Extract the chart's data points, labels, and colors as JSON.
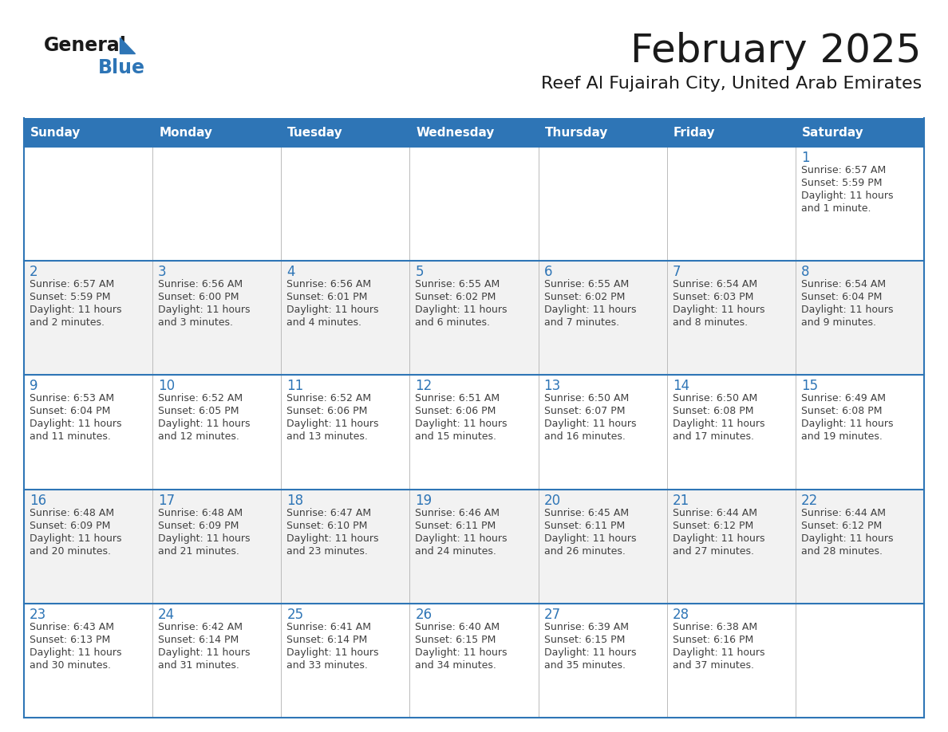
{
  "title": "February 2025",
  "subtitle": "Reef Al Fujairah City, United Arab Emirates",
  "days_of_week": [
    "Sunday",
    "Monday",
    "Tuesday",
    "Wednesday",
    "Thursday",
    "Friday",
    "Saturday"
  ],
  "header_bg": "#2E75B6",
  "header_text": "#FFFFFF",
  "row_bg_even": "#FFFFFF",
  "row_bg_odd": "#F2F2F2",
  "cell_border_color": "#2E75B6",
  "vert_border_color": "#BBBBBB",
  "day_number_color": "#2E75B6",
  "info_text_color": "#404040",
  "calendar_data": [
    {
      "day": 1,
      "col": 6,
      "row": 0,
      "sunrise": "6:57 AM",
      "sunset": "5:59 PM",
      "daylight": "11 hours and 1 minute."
    },
    {
      "day": 2,
      "col": 0,
      "row": 1,
      "sunrise": "6:57 AM",
      "sunset": "5:59 PM",
      "daylight": "11 hours and 2 minutes."
    },
    {
      "day": 3,
      "col": 1,
      "row": 1,
      "sunrise": "6:56 AM",
      "sunset": "6:00 PM",
      "daylight": "11 hours and 3 minutes."
    },
    {
      "day": 4,
      "col": 2,
      "row": 1,
      "sunrise": "6:56 AM",
      "sunset": "6:01 PM",
      "daylight": "11 hours and 4 minutes."
    },
    {
      "day": 5,
      "col": 3,
      "row": 1,
      "sunrise": "6:55 AM",
      "sunset": "6:02 PM",
      "daylight": "11 hours and 6 minutes."
    },
    {
      "day": 6,
      "col": 4,
      "row": 1,
      "sunrise": "6:55 AM",
      "sunset": "6:02 PM",
      "daylight": "11 hours and 7 minutes."
    },
    {
      "day": 7,
      "col": 5,
      "row": 1,
      "sunrise": "6:54 AM",
      "sunset": "6:03 PM",
      "daylight": "11 hours and 8 minutes."
    },
    {
      "day": 8,
      "col": 6,
      "row": 1,
      "sunrise": "6:54 AM",
      "sunset": "6:04 PM",
      "daylight": "11 hours and 9 minutes."
    },
    {
      "day": 9,
      "col": 0,
      "row": 2,
      "sunrise": "6:53 AM",
      "sunset": "6:04 PM",
      "daylight": "11 hours and 11 minutes."
    },
    {
      "day": 10,
      "col": 1,
      "row": 2,
      "sunrise": "6:52 AM",
      "sunset": "6:05 PM",
      "daylight": "11 hours and 12 minutes."
    },
    {
      "day": 11,
      "col": 2,
      "row": 2,
      "sunrise": "6:52 AM",
      "sunset": "6:06 PM",
      "daylight": "11 hours and 13 minutes."
    },
    {
      "day": 12,
      "col": 3,
      "row": 2,
      "sunrise": "6:51 AM",
      "sunset": "6:06 PM",
      "daylight": "11 hours and 15 minutes."
    },
    {
      "day": 13,
      "col": 4,
      "row": 2,
      "sunrise": "6:50 AM",
      "sunset": "6:07 PM",
      "daylight": "11 hours and 16 minutes."
    },
    {
      "day": 14,
      "col": 5,
      "row": 2,
      "sunrise": "6:50 AM",
      "sunset": "6:08 PM",
      "daylight": "11 hours and 17 minutes."
    },
    {
      "day": 15,
      "col": 6,
      "row": 2,
      "sunrise": "6:49 AM",
      "sunset": "6:08 PM",
      "daylight": "11 hours and 19 minutes."
    },
    {
      "day": 16,
      "col": 0,
      "row": 3,
      "sunrise": "6:48 AM",
      "sunset": "6:09 PM",
      "daylight": "11 hours and 20 minutes."
    },
    {
      "day": 17,
      "col": 1,
      "row": 3,
      "sunrise": "6:48 AM",
      "sunset": "6:09 PM",
      "daylight": "11 hours and 21 minutes."
    },
    {
      "day": 18,
      "col": 2,
      "row": 3,
      "sunrise": "6:47 AM",
      "sunset": "6:10 PM",
      "daylight": "11 hours and 23 minutes."
    },
    {
      "day": 19,
      "col": 3,
      "row": 3,
      "sunrise": "6:46 AM",
      "sunset": "6:11 PM",
      "daylight": "11 hours and 24 minutes."
    },
    {
      "day": 20,
      "col": 4,
      "row": 3,
      "sunrise": "6:45 AM",
      "sunset": "6:11 PM",
      "daylight": "11 hours and 26 minutes."
    },
    {
      "day": 21,
      "col": 5,
      "row": 3,
      "sunrise": "6:44 AM",
      "sunset": "6:12 PM",
      "daylight": "11 hours and 27 minutes."
    },
    {
      "day": 22,
      "col": 6,
      "row": 3,
      "sunrise": "6:44 AM",
      "sunset": "6:12 PM",
      "daylight": "11 hours and 28 minutes."
    },
    {
      "day": 23,
      "col": 0,
      "row": 4,
      "sunrise": "6:43 AM",
      "sunset": "6:13 PM",
      "daylight": "11 hours and 30 minutes."
    },
    {
      "day": 24,
      "col": 1,
      "row": 4,
      "sunrise": "6:42 AM",
      "sunset": "6:14 PM",
      "daylight": "11 hours and 31 minutes."
    },
    {
      "day": 25,
      "col": 2,
      "row": 4,
      "sunrise": "6:41 AM",
      "sunset": "6:14 PM",
      "daylight": "11 hours and 33 minutes."
    },
    {
      "day": 26,
      "col": 3,
      "row": 4,
      "sunrise": "6:40 AM",
      "sunset": "6:15 PM",
      "daylight": "11 hours and 34 minutes."
    },
    {
      "day": 27,
      "col": 4,
      "row": 4,
      "sunrise": "6:39 AM",
      "sunset": "6:15 PM",
      "daylight": "11 hours and 35 minutes."
    },
    {
      "day": 28,
      "col": 5,
      "row": 4,
      "sunrise": "6:38 AM",
      "sunset": "6:16 PM",
      "daylight": "11 hours and 37 minutes."
    }
  ],
  "logo_text_general": "General",
  "logo_text_blue": "Blue",
  "logo_color_general": "#1a1a1a",
  "logo_color_blue": "#2E75B6",
  "logo_triangle_color": "#2E75B6",
  "title_fontsize": 36,
  "subtitle_fontsize": 16,
  "header_fontsize": 11,
  "day_num_fontsize": 12,
  "info_fontsize": 9
}
